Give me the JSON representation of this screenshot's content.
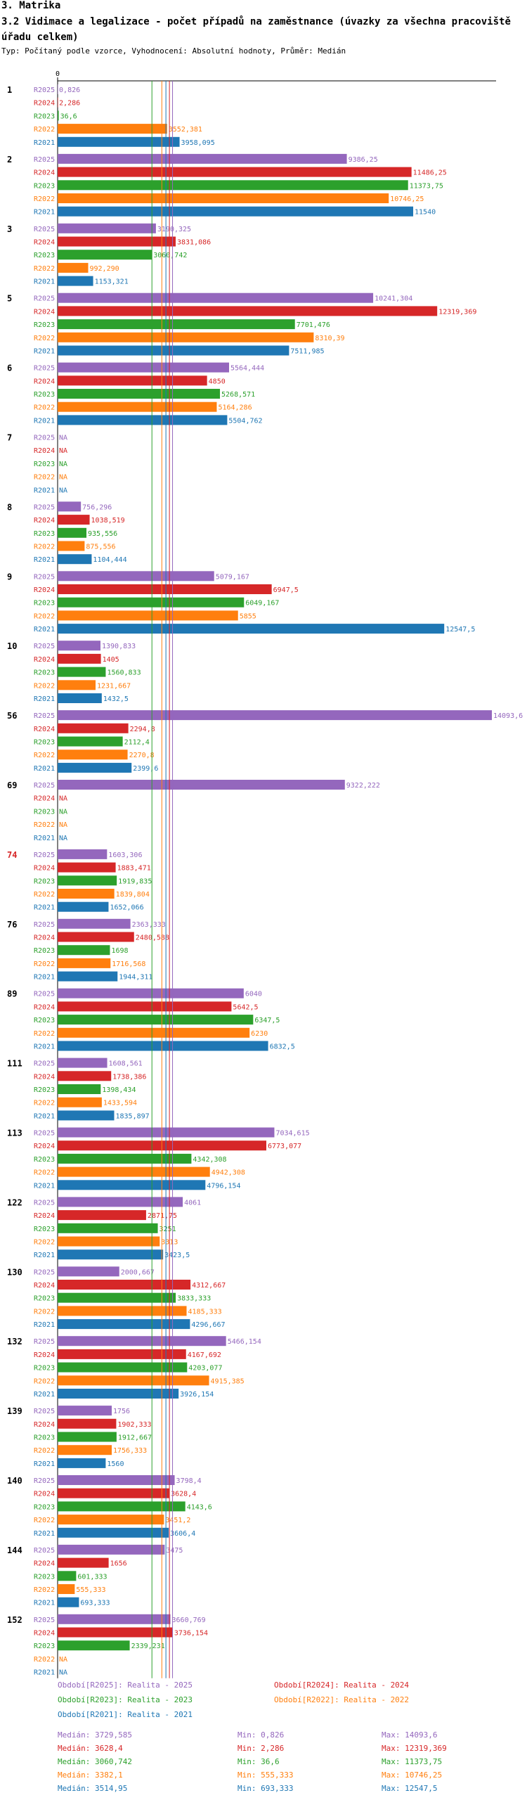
{
  "header": {
    "section": "3. Matrika",
    "title": "3.2 Vidimace a legalizace - počet případů na zaměstnance (úvazky za všechna pracoviště úřadu celkem)",
    "subtitle": "Typ: Počítaný podle vzorce, Vyhodnocení: Absolutní hodnoty, Průměr: Medián"
  },
  "colors": {
    "R2025": "#9467bd",
    "R2024": "#d62728",
    "R2023": "#2ca02c",
    "R2022": "#ff7f0e",
    "R2021": "#1f77b4"
  },
  "chart_data": {
    "type": "bar",
    "orientation": "horizontal",
    "title": "3.2 Vidimace a legalizace - počet případů na zaměstnance (úvazky za všechna pracoviště úřadu celkem)",
    "x_zero_label": "0",
    "xlim": [
      0,
      14093.6
    ],
    "series_order": [
      "R2025",
      "R2024",
      "R2023",
      "R2022",
      "R2021"
    ],
    "groups": [
      {
        "id": "1",
        "highlight": false,
        "labels": [
          "0,826",
          "2,286",
          "36,6",
          "3552,381",
          "3958,095"
        ],
        "values": [
          0.826,
          2.286,
          36.6,
          3552.381,
          3958.095
        ]
      },
      {
        "id": "2",
        "highlight": false,
        "labels": [
          "9386,25",
          "11486,25",
          "11373,75",
          "10746,25",
          "11540"
        ],
        "values": [
          9386.25,
          11486.25,
          11373.75,
          10746.25,
          11540
        ]
      },
      {
        "id": "3",
        "highlight": false,
        "labels": [
          "3190,325",
          "3831,086",
          "3060,742",
          "992,290",
          "1153,321"
        ],
        "values": [
          3190.325,
          3831.086,
          3060.742,
          992.29,
          1153.321
        ]
      },
      {
        "id": "5",
        "highlight": false,
        "labels": [
          "10241,304",
          "12319,369",
          "7701,476",
          "8310,39",
          "7511,985"
        ],
        "values": [
          10241.304,
          12319.369,
          7701.476,
          8310.39,
          7511.985
        ]
      },
      {
        "id": "6",
        "highlight": false,
        "labels": [
          "5564,444",
          "4850",
          "5268,571",
          "5164,286",
          "5504,762"
        ],
        "values": [
          5564.444,
          4850,
          5268.571,
          5164.286,
          5504.762
        ]
      },
      {
        "id": "7",
        "highlight": false,
        "labels": [
          "NA",
          "NA",
          "NA",
          "NA",
          "NA"
        ],
        "values": [
          null,
          null,
          null,
          null,
          null
        ]
      },
      {
        "id": "8",
        "highlight": false,
        "labels": [
          "756,296",
          "1038,519",
          "935,556",
          "875,556",
          "1104,444"
        ],
        "values": [
          756.296,
          1038.519,
          935.556,
          875.556,
          1104.444
        ]
      },
      {
        "id": "9",
        "highlight": false,
        "labels": [
          "5079,167",
          "6947,5",
          "6049,167",
          "5855",
          "12547,5"
        ],
        "values": [
          5079.167,
          6947.5,
          6049.167,
          5855,
          12547.5
        ]
      },
      {
        "id": "10",
        "highlight": false,
        "labels": [
          "1390,833",
          "1405",
          "1560,833",
          "1231,667",
          "1432,5"
        ],
        "values": [
          1390.833,
          1405,
          1560.833,
          1231.667,
          1432.5
        ]
      },
      {
        "id": "56",
        "highlight": false,
        "labels": [
          "14093,6",
          "2294,8",
          "2112,4",
          "2270,8",
          "2399,6"
        ],
        "values": [
          14093.6,
          2294.8,
          2112.4,
          2270.8,
          2399.6
        ]
      },
      {
        "id": "69",
        "highlight": false,
        "labels": [
          "9322,222",
          "NA",
          "NA",
          "NA",
          "NA"
        ],
        "values": [
          9322.222,
          null,
          null,
          null,
          null
        ]
      },
      {
        "id": "74",
        "highlight": true,
        "labels": [
          "1603,306",
          "1883,471",
          "1919,835",
          "1839,804",
          "1652,066"
        ],
        "values": [
          1603.306,
          1883.471,
          1919.835,
          1839.804,
          1652.066
        ]
      },
      {
        "id": "76",
        "highlight": false,
        "labels": [
          "2363,333",
          "2480,588",
          "1698",
          "1716,568",
          "1944,311"
        ],
        "values": [
          2363.333,
          2480.588,
          1698,
          1716.568,
          1944.311
        ]
      },
      {
        "id": "89",
        "highlight": false,
        "labels": [
          "6040",
          "5642,5",
          "6347,5",
          "6230",
          "6832,5"
        ],
        "values": [
          6040,
          5642.5,
          6347.5,
          6230,
          6832.5
        ]
      },
      {
        "id": "111",
        "highlight": false,
        "labels": [
          "1608,561",
          "1738,386",
          "1398,434",
          "1433,594",
          "1835,897"
        ],
        "values": [
          1608.561,
          1738.386,
          1398.434,
          1433.594,
          1835.897
        ]
      },
      {
        "id": "113",
        "highlight": false,
        "labels": [
          "7034,615",
          "6773,077",
          "4342,308",
          "4942,308",
          "4796,154"
        ],
        "values": [
          7034.615,
          6773.077,
          4342.308,
          4942.308,
          4796.154
        ]
      },
      {
        "id": "122",
        "highlight": false,
        "labels": [
          "4061",
          "2871,75",
          "3251",
          "3313",
          "3423,5"
        ],
        "values": [
          4061,
          2871.75,
          3251,
          3313,
          3423.5
        ]
      },
      {
        "id": "130",
        "highlight": false,
        "labels": [
          "2000,667",
          "4312,667",
          "3833,333",
          "4185,333",
          "4296,667"
        ],
        "values": [
          2000.667,
          4312.667,
          3833.333,
          4185.333,
          4296.667
        ]
      },
      {
        "id": "132",
        "highlight": false,
        "labels": [
          "5466,154",
          "4167,692",
          "4203,077",
          "4915,385",
          "3926,154"
        ],
        "values": [
          5466.154,
          4167.692,
          4203.077,
          4915.385,
          3926.154
        ]
      },
      {
        "id": "139",
        "highlight": false,
        "labels": [
          "1756",
          "1902,333",
          "1912,667",
          "1756,333",
          "1560"
        ],
        "values": [
          1756,
          1902.333,
          1912.667,
          1756.333,
          1560
        ]
      },
      {
        "id": "140",
        "highlight": false,
        "labels": [
          "3798,4",
          "3628,4",
          "4143,6",
          "3451,2",
          "3606,4"
        ],
        "values": [
          3798.4,
          3628.4,
          4143.6,
          3451.2,
          3606.4
        ]
      },
      {
        "id": "144",
        "highlight": false,
        "labels": [
          "3475",
          "1656",
          "601,333",
          "555,333",
          "693,333"
        ],
        "values": [
          3475,
          1656,
          601.333,
          555.333,
          693.333
        ]
      },
      {
        "id": "152",
        "highlight": false,
        "labels": [
          "3660,769",
          "3736,154",
          "2339,231",
          "NA",
          "NA"
        ],
        "values": [
          3660.769,
          3736.154,
          2339.231,
          null,
          null
        ]
      }
    ],
    "median_lines": [
      {
        "series": "R2025",
        "value": 3729.585
      },
      {
        "series": "R2024",
        "value": 3628.4
      },
      {
        "series": "R2023",
        "value": 3060.742
      },
      {
        "series": "R2022",
        "value": 3382.1
      },
      {
        "series": "R2021",
        "value": 3514.95
      }
    ]
  },
  "legend": [
    {
      "series": "R2025",
      "text": "Období[R2025]: Realita - 2025"
    },
    {
      "series": "R2024",
      "text": "Období[R2024]: Realita - 2024"
    },
    {
      "series": "R2023",
      "text": "Období[R2023]: Realita - 2023"
    },
    {
      "series": "R2022",
      "text": "Období[R2022]: Realita - 2022"
    },
    {
      "series": "R2021",
      "text": "Období[R2021]: Realita - 2021"
    }
  ],
  "stats": [
    {
      "series": "R2025",
      "median": "Medián: 3729,585",
      "min": "Min: 0,826",
      "max": "Max: 14093,6"
    },
    {
      "series": "R2024",
      "median": "Medián: 3628,4",
      "min": "Min: 2,286",
      "max": "Max: 12319,369"
    },
    {
      "series": "R2023",
      "median": "Medián: 3060,742",
      "min": "Min: 36,6",
      "max": "Max: 11373,75"
    },
    {
      "series": "R2022",
      "median": "Medián: 3382,1",
      "min": "Min: 555,333",
      "max": "Max: 10746,25"
    },
    {
      "series": "R2021",
      "median": "Medián: 3514,95",
      "min": "Min: 693,333",
      "max": "Max: 12547,5"
    }
  ]
}
